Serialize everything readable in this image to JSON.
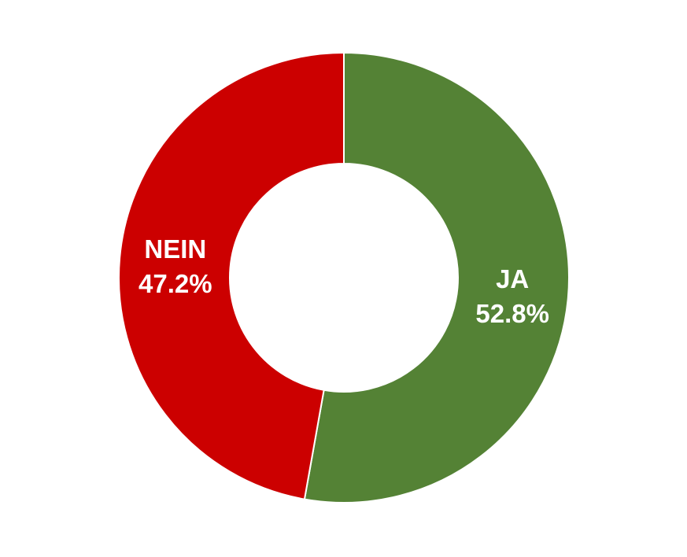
{
  "chart_data": {
    "type": "pie",
    "variant": "donut",
    "title": "",
    "legend": "none",
    "slices": [
      {
        "label": "JA",
        "value": 52.8,
        "value_label": "52.8%",
        "color": "#548235"
      },
      {
        "label": "NEIN",
        "value": 47.2,
        "value_label": "47.2%",
        "color": "#CC0000"
      }
    ]
  }
}
